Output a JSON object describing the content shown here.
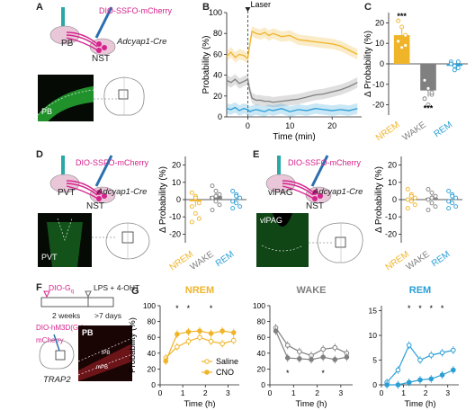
{
  "panel_labels": [
    "A",
    "B",
    "C",
    "D",
    "E",
    "F",
    "G"
  ],
  "panelA": {
    "virus": "DIO-SSFO-mCherry",
    "region_src": "PB",
    "region_tgt": "NST",
    "mouse": "Adcyap1-Cre",
    "micro_label": "PB"
  },
  "panelD": {
    "virus": "DIO-SSFO-mCherry",
    "region_src": "PVT",
    "region_tgt": "NST",
    "mouse": "Adcyap1-Cre",
    "micro_label": "PVT"
  },
  "panelE": {
    "virus": "DIO-SSFO-mCherry",
    "region_src": "vlPAG",
    "region_tgt": "NST",
    "mouse": "Adcyap1-Cre",
    "micro_label": "vlPAG"
  },
  "panelF": {
    "dreadd_line1": "DIO-G",
    "dreadd_sub": "q",
    "lps": "LPS + 4-OHT",
    "weeks": "2 weeks",
    "days": ">7 days",
    "hm3d_line1": "DIO-hM3D(G",
    "hm3d_sub": "q",
    "hm3d_line1_end": ")-",
    "hm3d_line2": "mCherry",
    "mouse": "TRAP2",
    "micro_label": "PB",
    "sub_a": "lPB",
    "sub_b": "mPB"
  },
  "colors": {
    "nrem": "#f0b429",
    "wake": "#808080",
    "rem": "#2b9fd6",
    "magenta": "#d6228c",
    "teal": "#2aa7a7"
  },
  "chart_data": [
    {
      "panel": "B",
      "type": "line",
      "annotation": "Laser",
      "xlabel": "Time (min)",
      "ylabel": "Probability (%)",
      "xlim": [
        -5,
        27
      ],
      "ylim": [
        0,
        100
      ],
      "xticks": [
        0,
        10,
        20
      ],
      "yticks": [
        0,
        20,
        40,
        60,
        80,
        100
      ],
      "series": [
        {
          "key": "nrem",
          "x": [
            -5,
            -4,
            -3,
            -2,
            -1,
            0,
            0.5,
            1,
            2,
            3,
            4,
            5,
            6,
            8,
            10,
            12,
            14,
            16,
            18,
            20,
            22,
            24,
            26
          ],
          "values": [
            58,
            62,
            57,
            60,
            59,
            56,
            70,
            82,
            80,
            79,
            81,
            78,
            80,
            77,
            78,
            74,
            73,
            72,
            71,
            70,
            68,
            64,
            60
          ]
        },
        {
          "key": "wake",
          "x": [
            -5,
            -4,
            -3,
            -2,
            -1,
            0,
            0.5,
            1,
            2,
            3,
            4,
            5,
            6,
            8,
            10,
            12,
            14,
            16,
            18,
            20,
            22,
            24,
            26
          ],
          "values": [
            35,
            33,
            36,
            32,
            34,
            36,
            25,
            18,
            16,
            16,
            15,
            15,
            14,
            15,
            16,
            17,
            19,
            21,
            22,
            24,
            26,
            29,
            33
          ]
        },
        {
          "key": "rem",
          "x": [
            -5,
            -4,
            -3,
            -2,
            -1,
            0,
            0.5,
            1,
            2,
            3,
            4,
            5,
            6,
            8,
            10,
            12,
            14,
            16,
            18,
            20,
            22,
            24,
            26
          ],
          "values": [
            8,
            7,
            9,
            6,
            8,
            7,
            5,
            6,
            7,
            6,
            5,
            7,
            6,
            8,
            5,
            7,
            6,
            8,
            7,
            6,
            7,
            6,
            8
          ]
        }
      ]
    },
    {
      "panel": "C",
      "type": "bar",
      "ylabel": "Δ Probability (%)",
      "ylim": [
        -25,
        25
      ],
      "yticks": [
        -20,
        -10,
        0,
        10,
        20
      ],
      "categories": [
        "NREM",
        "WAKE",
        "REM"
      ],
      "values": [
        14,
        -13,
        -1
      ],
      "significance": [
        "***",
        "***",
        ""
      ],
      "points": [
        [
          21,
          18,
          14,
          11,
          8,
          9
        ],
        [
          -8,
          -12,
          -15,
          -17,
          -20,
          -14
        ],
        [
          1,
          -1,
          -2,
          0,
          -3,
          1
        ]
      ]
    },
    {
      "panel": "D",
      "type": "bar",
      "ylabel": "Δ Probability (%)",
      "ylim": [
        -25,
        25
      ],
      "yticks": [
        -20,
        -10,
        0,
        10,
        20
      ],
      "categories": [
        "NREM",
        "WAKE",
        "REM"
      ],
      "values": [
        -1,
        2,
        0
      ],
      "points": [
        [
          4,
          2,
          -2,
          -4,
          -8,
          -11,
          -13,
          1
        ],
        [
          8,
          5,
          3,
          1,
          -1,
          -3,
          -6,
          2
        ],
        [
          5,
          3,
          1,
          -1,
          -2,
          -4,
          -5,
          2
        ]
      ]
    },
    {
      "panel": "E",
      "type": "bar",
      "ylabel": "Δ Probability (%)",
      "ylim": [
        -25,
        25
      ],
      "yticks": [
        -20,
        -10,
        0,
        10,
        20
      ],
      "categories": [
        "NREM",
        "WAKE",
        "REM"
      ],
      "values": [
        0,
        1,
        0
      ],
      "points": [
        [
          6,
          3,
          1,
          0,
          -1,
          -3,
          -5,
          2
        ],
        [
          6,
          4,
          2,
          0,
          -2,
          -4,
          -6,
          1
        ],
        [
          5,
          3,
          1,
          -1,
          -2,
          -4,
          -5,
          2
        ]
      ]
    },
    {
      "panel": "G",
      "type": "line",
      "subplots": [
        {
          "title": "NREM",
          "key": "nrem",
          "xlabel": "Time (h)",
          "ylabel": "Probability (%)",
          "ylim": [
            0,
            100
          ],
          "xlim": [
            0,
            3.5
          ],
          "xticks": [
            0,
            1,
            2,
            3
          ],
          "yticks": [
            0,
            20,
            40,
            60,
            80,
            100
          ],
          "x": [
            0.25,
            0.75,
            1.25,
            1.75,
            2.25,
            2.75,
            3.25
          ],
          "saline": [
            34,
            48,
            55,
            60,
            55,
            52,
            56
          ],
          "cno": [
            30,
            64,
            67,
            68,
            65,
            68,
            66
          ],
          "stars": [
            0.75,
            1.25,
            2.25
          ],
          "star_pos": "top"
        },
        {
          "title": "WAKE",
          "key": "wake",
          "xlabel": "Time (h)",
          "ylim": [
            0,
            100
          ],
          "xlim": [
            0,
            3.5
          ],
          "xticks": [
            0,
            1,
            2,
            3
          ],
          "yticks": [
            0,
            20,
            40,
            60,
            80,
            100
          ],
          "x": [
            0.25,
            0.75,
            1.25,
            1.75,
            2.25,
            2.75,
            3.25
          ],
          "saline": [
            72,
            50,
            42,
            37,
            45,
            47,
            40
          ],
          "cno": [
            68,
            34,
            33,
            32,
            35,
            32,
            35
          ],
          "stars": [
            0.75,
            2.25
          ],
          "star_pos": "bottom"
        },
        {
          "title": "REM",
          "key": "rem",
          "xlabel": "Time (h)",
          "ylim": [
            0,
            16
          ],
          "xlim": [
            0,
            3.5
          ],
          "xticks": [
            0,
            1,
            2,
            3
          ],
          "yticks": [
            0,
            5,
            10,
            15
          ],
          "x": [
            0.25,
            0.75,
            1.25,
            1.75,
            2.25,
            2.75,
            3.25
          ],
          "saline": [
            0.5,
            3,
            8,
            5,
            6,
            6.5,
            7
          ],
          "cno": [
            0,
            0,
            0.5,
            1,
            1.2,
            2,
            3
          ],
          "stars": [
            1.25,
            1.75,
            2.25,
            2.75
          ],
          "star_pos": "top"
        }
      ],
      "legend": [
        "Saline",
        "CNO"
      ]
    }
  ]
}
